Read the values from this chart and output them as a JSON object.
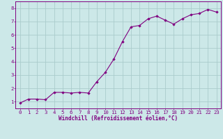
{
  "x": [
    0,
    1,
    2,
    3,
    4,
    5,
    6,
    7,
    8,
    9,
    10,
    11,
    12,
    13,
    14,
    15,
    16,
    17,
    18,
    19,
    20,
    21,
    22,
    23
  ],
  "y": [
    0.9,
    1.2,
    1.2,
    1.15,
    1.7,
    1.7,
    1.65,
    1.7,
    1.65,
    2.5,
    3.2,
    4.2,
    5.5,
    6.6,
    6.7,
    7.2,
    7.4,
    7.1,
    6.8,
    7.2,
    7.5,
    7.6,
    7.9,
    7.7
  ],
  "line_color": "#800080",
  "marker": "D",
  "marker_size": 1.8,
  "bg_color": "#cce8e8",
  "grid_color": "#aacccc",
  "xlabel": "Windchill (Refroidissement éolien,°C)",
  "xlabel_color": "#800080",
  "xlabel_fontsize": 5.5,
  "tick_color": "#800080",
  "tick_fontsize": 5.2,
  "xlim": [
    -0.5,
    23.5
  ],
  "ylim": [
    0.5,
    8.5
  ],
  "yticks": [
    1,
    2,
    3,
    4,
    5,
    6,
    7,
    8
  ],
  "xticks": [
    0,
    1,
    2,
    3,
    4,
    5,
    6,
    7,
    8,
    9,
    10,
    11,
    12,
    13,
    14,
    15,
    16,
    17,
    18,
    19,
    20,
    21,
    22,
    23
  ],
  "spine_color": "#800080",
  "line_width": 0.8
}
